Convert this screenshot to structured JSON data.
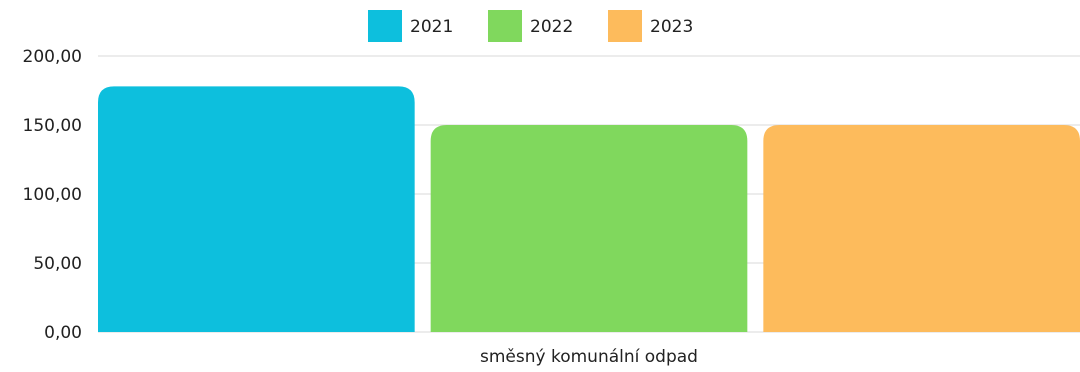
{
  "chart_data": {
    "type": "bar",
    "categories": [
      "směsný komunální odpad"
    ],
    "series": [
      {
        "name": "2021",
        "values": [
          178
        ],
        "color": "#0dbfdd"
      },
      {
        "name": "2022",
        "values": [
          150
        ],
        "color": "#80d85d"
      },
      {
        "name": "2023",
        "values": [
          150
        ],
        "color": "#fdbb5c"
      }
    ],
    "y_ticks": [
      "0,00",
      "50,00",
      "100,00",
      "150,00",
      "200,00"
    ],
    "ylim": [
      0,
      200
    ],
    "grid": true,
    "legend": "top-center"
  }
}
